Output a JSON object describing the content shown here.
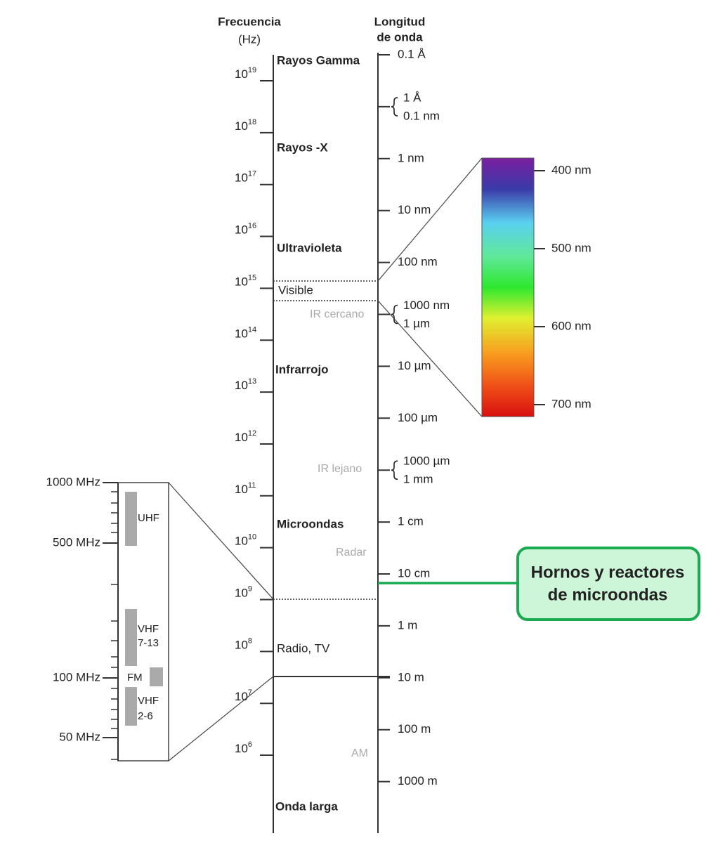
{
  "frequency_axis": {
    "title": "Frecuencia",
    "unit": "(Hz)",
    "ticks": [
      {
        "base": "10",
        "exponent": "19"
      },
      {
        "base": "10",
        "exponent": "18"
      },
      {
        "base": "10",
        "exponent": "17"
      },
      {
        "base": "10",
        "exponent": "16"
      },
      {
        "base": "10",
        "exponent": "15"
      },
      {
        "base": "10",
        "exponent": "14"
      },
      {
        "base": "10",
        "exponent": "13"
      },
      {
        "base": "10",
        "exponent": "12"
      },
      {
        "base": "10",
        "exponent": "11"
      },
      {
        "base": "10",
        "exponent": "10"
      },
      {
        "base": "10",
        "exponent": "9"
      },
      {
        "base": "10",
        "exponent": "8"
      },
      {
        "base": "10",
        "exponent": "7"
      },
      {
        "base": "10",
        "exponent": "6"
      }
    ]
  },
  "wavelength_axis": {
    "title": [
      "Longitud",
      "de onda"
    ],
    "ticks": [
      [
        "0.1 Å"
      ],
      [
        "1 Å",
        "0.1 nm"
      ],
      [
        "1 nm"
      ],
      [
        "10 nm"
      ],
      [
        "100 nm"
      ],
      [
        "1000 nm",
        "1 µm"
      ],
      [
        "10 µm"
      ],
      [
        "100 µm"
      ],
      [
        "1000 µm",
        "1 mm"
      ],
      [
        "1 cm"
      ],
      [
        "10 cm"
      ],
      [
        "1 m"
      ],
      [
        "10 m"
      ],
      [
        "100 m"
      ],
      [
        "1000 m"
      ]
    ]
  },
  "regions": [
    "Rayos Gamma",
    "Rayos -X",
    "Ultravioleta",
    "Visible",
    "IR cercano",
    "Infrarrojo",
    "IR lejano",
    "Microondas",
    "Radar",
    "Radio, TV",
    "AM",
    "Onda larga"
  ],
  "visible_spectrum": {
    "labels": [
      "400 nm",
      "500 nm",
      "600 nm",
      "700 nm"
    ]
  },
  "radio_inset": {
    "ticks": [
      "1000 MHz",
      "500 MHz",
      "100 MHz",
      "50 MHz"
    ],
    "bands": [
      [
        "UHF"
      ],
      [
        "VHF",
        "7-13"
      ],
      [
        "FM"
      ],
      [
        "VHF",
        "2-6"
      ]
    ]
  },
  "callout": {
    "lines": [
      "Hornos y reactores",
      "de microondas"
    ]
  }
}
